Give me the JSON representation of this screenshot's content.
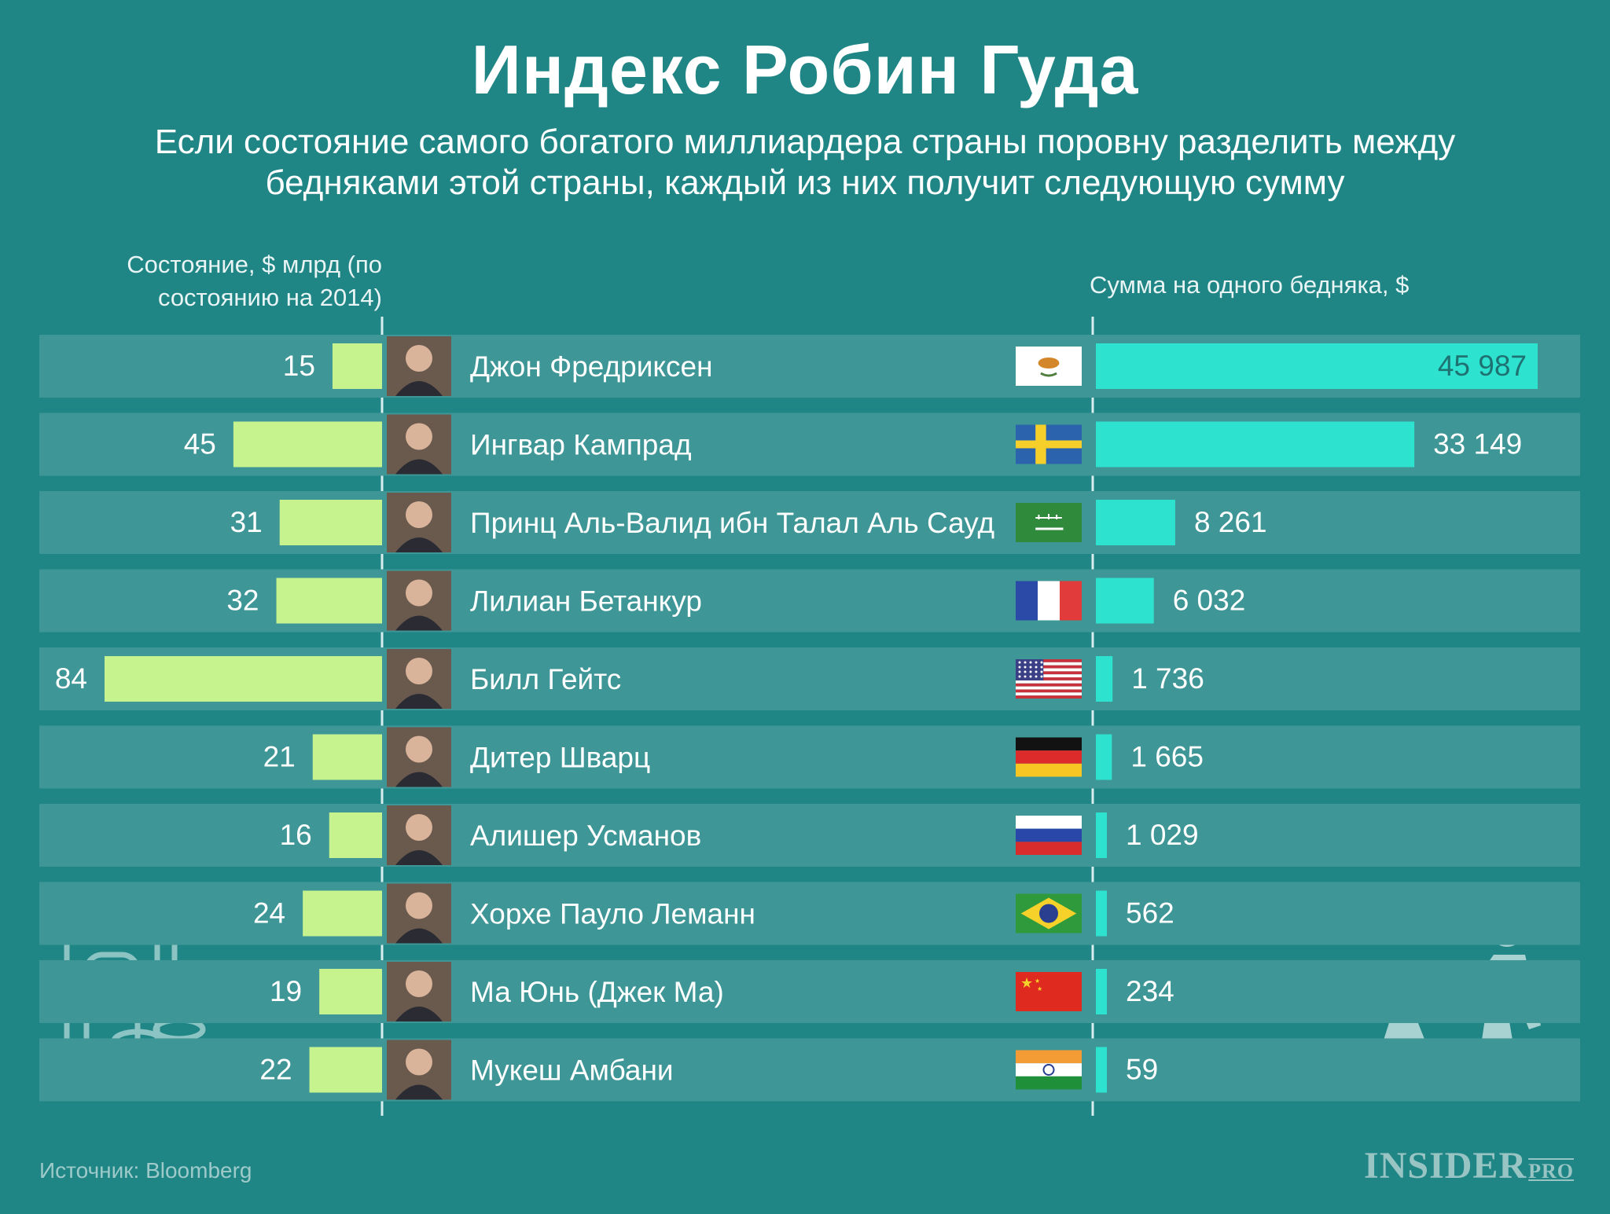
{
  "title": "Индекс Робин Гуда",
  "subtitle": "Если состояние самого богатого миллиардера страны поровну разделить между бедняками этой страны, каждый из них получит следующую сумму",
  "left_header": "Состояние, $ млрд (по состоянию на 2014)",
  "right_header": "Сумма на одного бедняка, $",
  "source": "Источник: Bloomberg",
  "brand": "INSIDER",
  "brand_suffix": "PRO",
  "colors": {
    "background": "#1f8585",
    "row_band": "#3f9696",
    "left_bar": "#c6f38d",
    "right_bar": "#2ee2d0",
    "axis_line": "#d8eeee"
  },
  "chart_data": {
    "type": "bar",
    "categories": [
      "Джон Фредриксен",
      "Ингвар Кампрад",
      "Принц Аль-Валид ибн Талал Аль Сауд",
      "Лилиан Бетанкур",
      "Билл Гейтс",
      "Дитер Шварц",
      "Алишер Усманов",
      "Хорхе Пауло Леманн",
      "Ма Юнь (Джек Ма)",
      "Мукеш Амбани"
    ],
    "flags": [
      "cyprus-flag",
      "sweden-flag",
      "saudi-arabia-flag",
      "france-flag",
      "usa-flag",
      "germany-flag",
      "russia-flag",
      "brazil-flag",
      "china-flag",
      "india-flag"
    ],
    "series": [
      {
        "name": "Состояние, $ млрд (по состоянию на 2014)",
        "values": [
          15,
          45,
          31,
          32,
          84,
          21,
          16,
          24,
          19,
          22
        ],
        "labels": [
          "15",
          "45",
          "31",
          "32",
          "84",
          "21",
          "16",
          "24",
          "19",
          "22"
        ]
      },
      {
        "name": "Сумма на одного бедняка, $",
        "values": [
          45987,
          33149,
          8261,
          6032,
          1736,
          1665,
          1029,
          562,
          234,
          59
        ],
        "labels": [
          "45 987",
          "33 149",
          "8 261",
          "6 032",
          "1 736",
          "1 665",
          "1 029",
          "562",
          "234",
          "59"
        ]
      }
    ]
  }
}
